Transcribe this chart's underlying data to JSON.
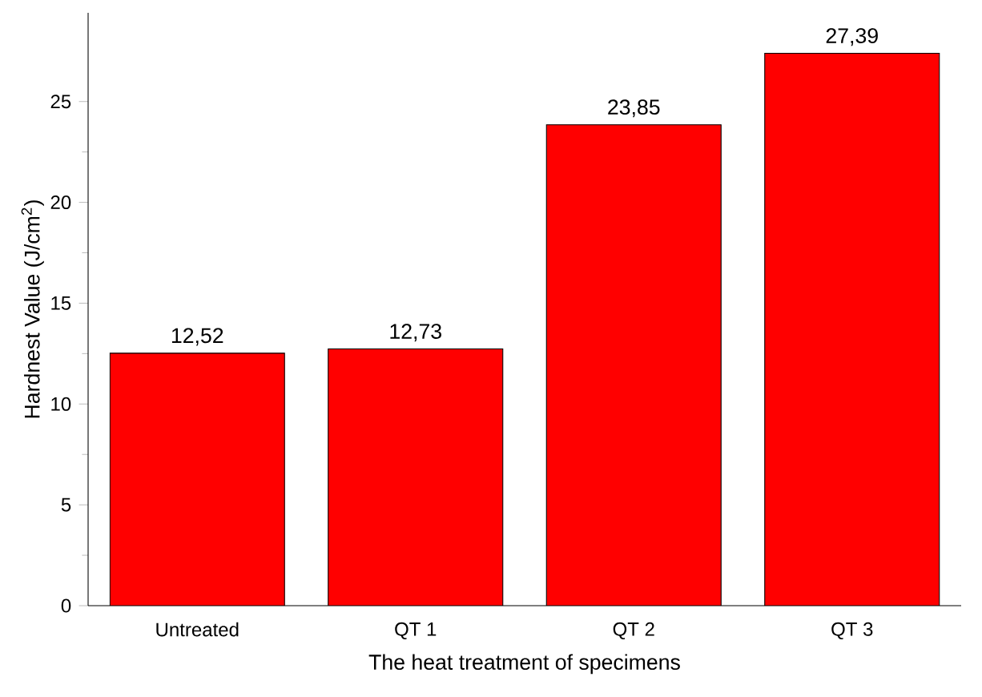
{
  "chart_data": {
    "type": "bar",
    "xlabel": "The heat treatment of specimens",
    "ylabel": "Hardnest Value (J/cm$^{2}$)",
    "categories": [
      "Untreated",
      "QT 1",
      "QT 2",
      "QT 3"
    ],
    "values": [
      12.52,
      12.73,
      23.85,
      27.39
    ],
    "value_labels": [
      "12,52",
      "12,73",
      "23,85",
      "27,39"
    ],
    "color": "#ff0000",
    "ylim": [
      0,
      29.4
    ],
    "yticks": [
      0,
      5,
      10,
      15,
      20,
      25
    ],
    "grid": false
  }
}
